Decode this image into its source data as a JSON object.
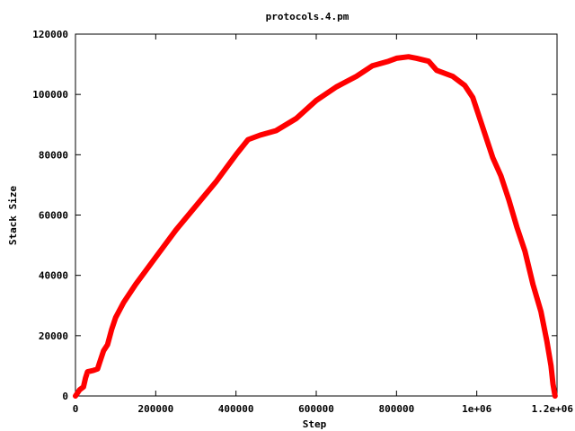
{
  "chart_data": {
    "type": "line",
    "title": "protocols.4.pm",
    "xlabel": "Step",
    "ylabel": "Stack Size",
    "xlim": [
      0,
      1200000
    ],
    "ylim": [
      0,
      120000
    ],
    "x_ticks": [
      {
        "value": 0,
        "label": "0"
      },
      {
        "value": 200000,
        "label": "200000"
      },
      {
        "value": 400000,
        "label": "400000"
      },
      {
        "value": 600000,
        "label": "600000"
      },
      {
        "value": 800000,
        "label": "800000"
      },
      {
        "value": 1000000,
        "label": "1e+06"
      },
      {
        "value": 1200000,
        "label": "1.2e+06"
      }
    ],
    "y_ticks": [
      {
        "value": 0,
        "label": "0"
      },
      {
        "value": 20000,
        "label": "20000"
      },
      {
        "value": 40000,
        "label": "40000"
      },
      {
        "value": 60000,
        "label": "60000"
      },
      {
        "value": 80000,
        "label": "80000"
      },
      {
        "value": 100000,
        "label": "100000"
      },
      {
        "value": 120000,
        "label": "120000"
      }
    ],
    "grid": false,
    "legend": "none",
    "series": [
      {
        "color": "#ff0000",
        "points": [
          [
            0,
            0
          ],
          [
            10000,
            2000
          ],
          [
            20000,
            3000
          ],
          [
            25000,
            6000
          ],
          [
            30000,
            8000
          ],
          [
            45000,
            8500
          ],
          [
            55000,
            9000
          ],
          [
            60000,
            11000
          ],
          [
            70000,
            15000
          ],
          [
            80000,
            17000
          ],
          [
            90000,
            22000
          ],
          [
            100000,
            26000
          ],
          [
            120000,
            31000
          ],
          [
            150000,
            37000
          ],
          [
            200000,
            46000
          ],
          [
            250000,
            55000
          ],
          [
            300000,
            63000
          ],
          [
            350000,
            71000
          ],
          [
            400000,
            80000
          ],
          [
            430000,
            85000
          ],
          [
            460000,
            86500
          ],
          [
            500000,
            88000
          ],
          [
            550000,
            92000
          ],
          [
            600000,
            98000
          ],
          [
            650000,
            102500
          ],
          [
            700000,
            106000
          ],
          [
            740000,
            109500
          ],
          [
            780000,
            111000
          ],
          [
            800000,
            112000
          ],
          [
            830000,
            112500
          ],
          [
            850000,
            112000
          ],
          [
            880000,
            111000
          ],
          [
            900000,
            108000
          ],
          [
            940000,
            106000
          ],
          [
            970000,
            103000
          ],
          [
            990000,
            99000
          ],
          [
            1000000,
            95000
          ],
          [
            1020000,
            87000
          ],
          [
            1040000,
            79000
          ],
          [
            1060000,
            73000
          ],
          [
            1080000,
            65000
          ],
          [
            1100000,
            56000
          ],
          [
            1120000,
            48000
          ],
          [
            1140000,
            37000
          ],
          [
            1160000,
            28000
          ],
          [
            1175000,
            18000
          ],
          [
            1185000,
            10000
          ],
          [
            1190000,
            4000
          ],
          [
            1195000,
            0
          ]
        ]
      }
    ]
  }
}
